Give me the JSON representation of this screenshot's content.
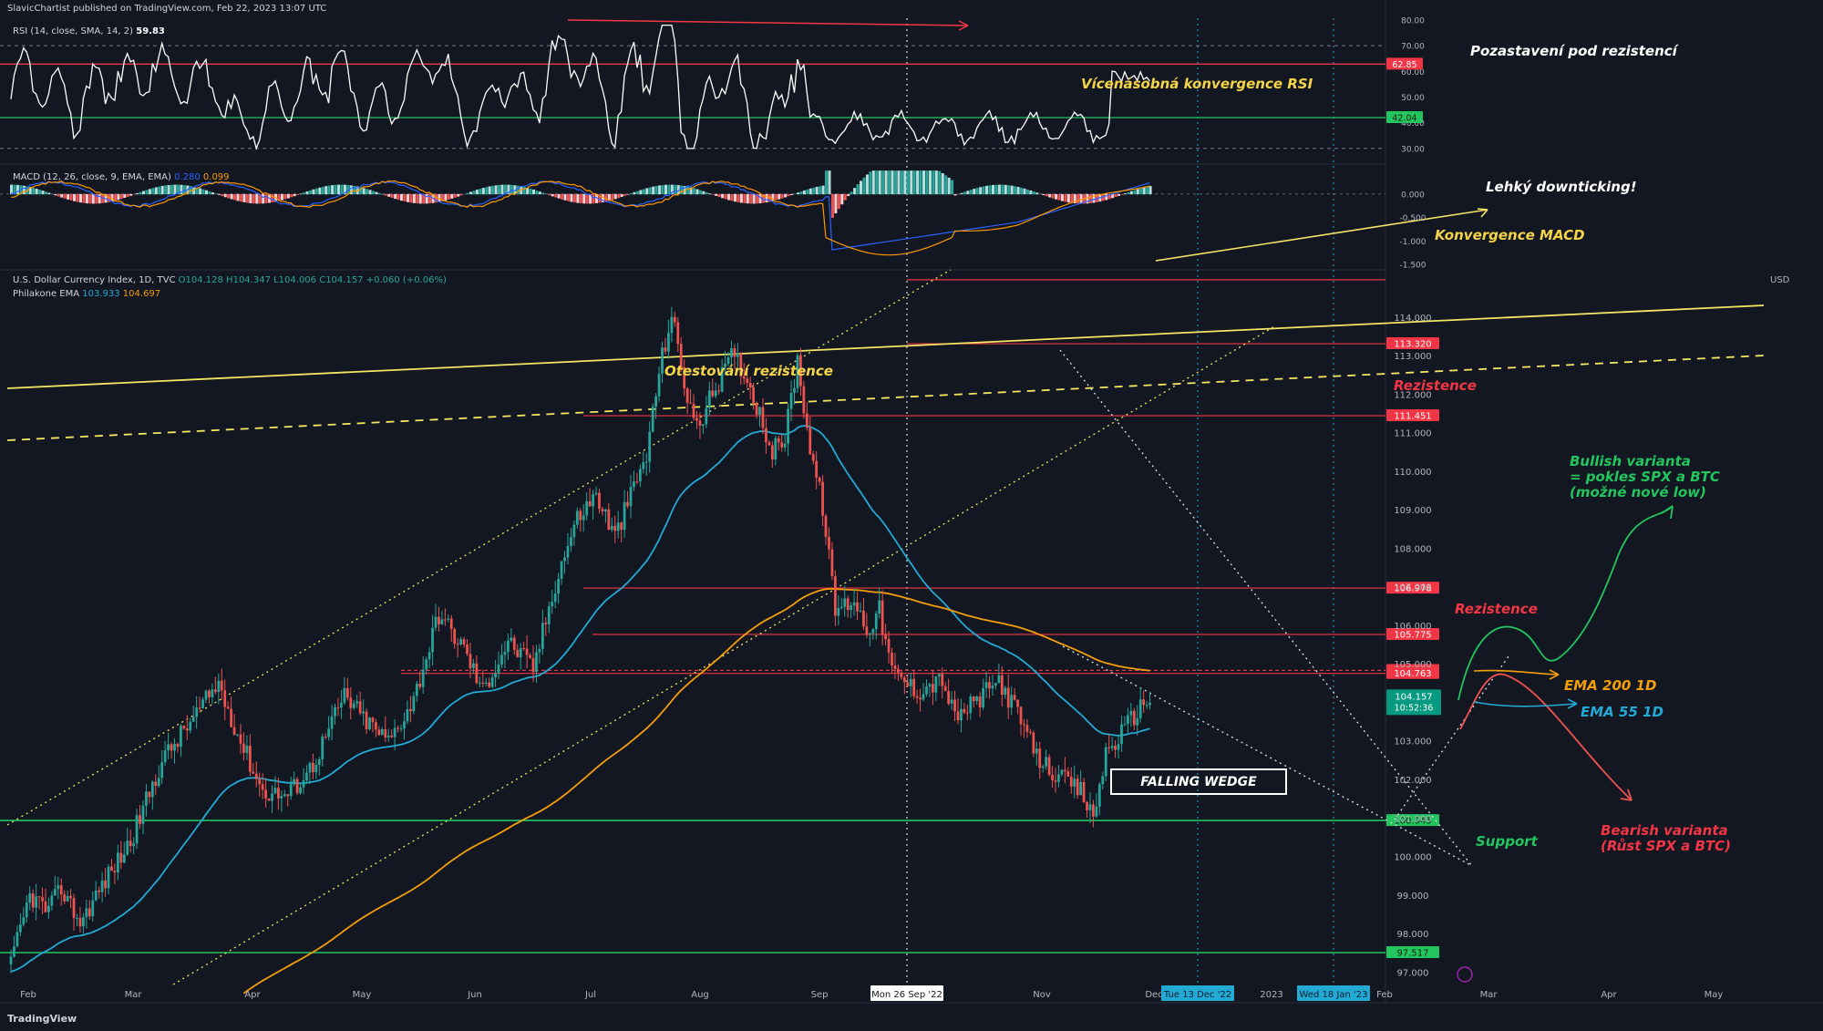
{
  "header": {
    "published": "SlavicChartist published on TradingView.com, Feb 22, 2023 13:07 UTC",
    "rsi_label": "RSI (14, close, SMA, 14, 2)",
    "rsi_value": "59.83",
    "macd_label": "MACD (12, 26, close, 9, EMA, EMA)",
    "macd_values": [
      "0.280",
      "0.099"
    ],
    "symbol": "U.S. Dollar Currency Index, 1D, TVC",
    "ohlc": "O104.128 H104.347 L104.006 C104.157 +0.060 (+0.06%)",
    "ema_label": "Philakone EMA",
    "ema_values": [
      "103.933",
      "104.697"
    ],
    "currency": "USD"
  },
  "footer": {
    "brand": "TradingView"
  },
  "annotations": {
    "rsi_res": "Pozastavení pod rezistencí",
    "rsi_conv": "Vícenásobná konvergence RSI",
    "macd_down": "Lehký downticking!",
    "macd_conv": "Konvergence MACD",
    "res_test": "Otestování rezistence",
    "res1": "Rezistence",
    "res2": "Rezistence",
    "wedge": "FALLING WEDGE",
    "bull1": "Bullish varianta",
    "bull2": "= pokles SPX a BTC",
    "bull3": "(možné nové low)",
    "ema200": "EMA 200 1D",
    "ema55": "EMA 55 1D",
    "support": "Support",
    "bear1": "Bearish varianta",
    "bear2": "(Růst SPX a BTC)"
  },
  "colors": {
    "background": "#131722",
    "bull": "#26a69a",
    "bear": "#ef5350",
    "resistance_line": "#f23645",
    "support_line": "#22c55e",
    "ema55": "#22a9d4",
    "ema200": "#f59e0b",
    "trendline": "#f5e663",
    "rsi_line": "#ffffff"
  },
  "chart_data": {
    "type": "candlestick",
    "title": "U.S. Dollar Currency Index, 1D, TVC",
    "x_labels": [
      "Feb",
      "Mar",
      "Apr",
      "May",
      "Jun",
      "Jul",
      "Aug",
      "Sep",
      "Nov",
      "Dec",
      "2023",
      "Feb",
      "Mar",
      "Apr",
      "May"
    ],
    "x_markers": [
      "Mon 26 Sep '22",
      "Tue 13 Dec '22",
      "Wed 18 Jan '23"
    ],
    "ylim": [
      96.5,
      115
    ],
    "y_ticks": [
      "114.000",
      "113.000",
      "112.000",
      "111.000",
      "110.000",
      "109.000",
      "108.000",
      "107.000",
      "106.000",
      "105.000",
      "104.000",
      "103.000",
      "102.000",
      "101.000",
      "100.000",
      "99.000",
      "98.000",
      "97.000"
    ],
    "price_levels": [
      {
        "value": 113.32,
        "label": "113.320",
        "kind": "resistance"
      },
      {
        "value": 111.451,
        "label": "111.451",
        "kind": "resistance"
      },
      {
        "value": 106.978,
        "label": "106.978",
        "kind": "resistance"
      },
      {
        "value": 105.775,
        "label": "105.775",
        "kind": "resistance"
      },
      {
        "value": 104.84,
        "label": "104.840",
        "kind": "resistance"
      },
      {
        "value": 104.763,
        "label": "104.763",
        "kind": "resistance"
      },
      {
        "value": 100.945,
        "label": "100.945",
        "kind": "support"
      },
      {
        "value": 97.517,
        "label": "97.517",
        "kind": "support"
      }
    ],
    "last_price": {
      "label": "104.157",
      "countdown": "10:52:36"
    },
    "dxy_anchors": [
      [
        0,
        97.2
      ],
      [
        6,
        99.0
      ],
      [
        12,
        98.6
      ],
      [
        16,
        99.2
      ],
      [
        22,
        98.3
      ],
      [
        30,
        99.4
      ],
      [
        38,
        100.4
      ],
      [
        48,
        102.5
      ],
      [
        58,
        103.6
      ],
      [
        66,
        104.5
      ],
      [
        72,
        103.2
      ],
      [
        80,
        101.7
      ],
      [
        88,
        101.6
      ],
      [
        96,
        102.4
      ],
      [
        106,
        104.2
      ],
      [
        112,
        103.6
      ],
      [
        120,
        103.0
      ],
      [
        128,
        104.1
      ],
      [
        136,
        106.3
      ],
      [
        144,
        105.4
      ],
      [
        150,
        104.3
      ],
      [
        158,
        105.6
      ],
      [
        166,
        104.9
      ],
      [
        174,
        107.4
      ],
      [
        180,
        108.8
      ],
      [
        186,
        109.4
      ],
      [
        192,
        108.3
      ],
      [
        198,
        109.6
      ],
      [
        202,
        110.4
      ],
      [
        206,
        112.6
      ],
      [
        210,
        114.1
      ],
      [
        214,
        112.3
      ],
      [
        218,
        111.1
      ],
      [
        224,
        112.2
      ],
      [
        230,
        113.1
      ],
      [
        236,
        112.0
      ],
      [
        242,
        110.5
      ],
      [
        246,
        110.9
      ],
      [
        250,
        112.9
      ],
      [
        254,
        110.6
      ],
      [
        258,
        109.1
      ],
      [
        262,
        106.4
      ],
      [
        268,
        106.7
      ],
      [
        272,
        105.9
      ],
      [
        276,
        106.4
      ],
      [
        280,
        104.8
      ],
      [
        288,
        104.3
      ],
      [
        296,
        104.6
      ],
      [
        300,
        103.6
      ],
      [
        308,
        104.1
      ],
      [
        314,
        104.6
      ],
      [
        320,
        103.7
      ],
      [
        326,
        102.6
      ],
      [
        334,
        102.0
      ],
      [
        340,
        101.7
      ],
      [
        344,
        101.0
      ],
      [
        348,
        102.7
      ],
      [
        352,
        103.1
      ],
      [
        358,
        103.8
      ],
      [
        362,
        104.157
      ]
    ],
    "rsi": {
      "ylim": [
        25,
        80
      ],
      "levels": [
        62.85,
        42.04
      ],
      "level_labels": [
        "62.85",
        "42.04"
      ],
      "y_ticks": [
        "80.00",
        "70.00",
        "60.00",
        "50.00",
        "40.00",
        "30.00"
      ]
    },
    "macd": {
      "ylim": [
        -1.5,
        0.6
      ],
      "y_ticks": [
        "0.000",
        "-0.500",
        "-1.000",
        "-1.500"
      ]
    }
  }
}
